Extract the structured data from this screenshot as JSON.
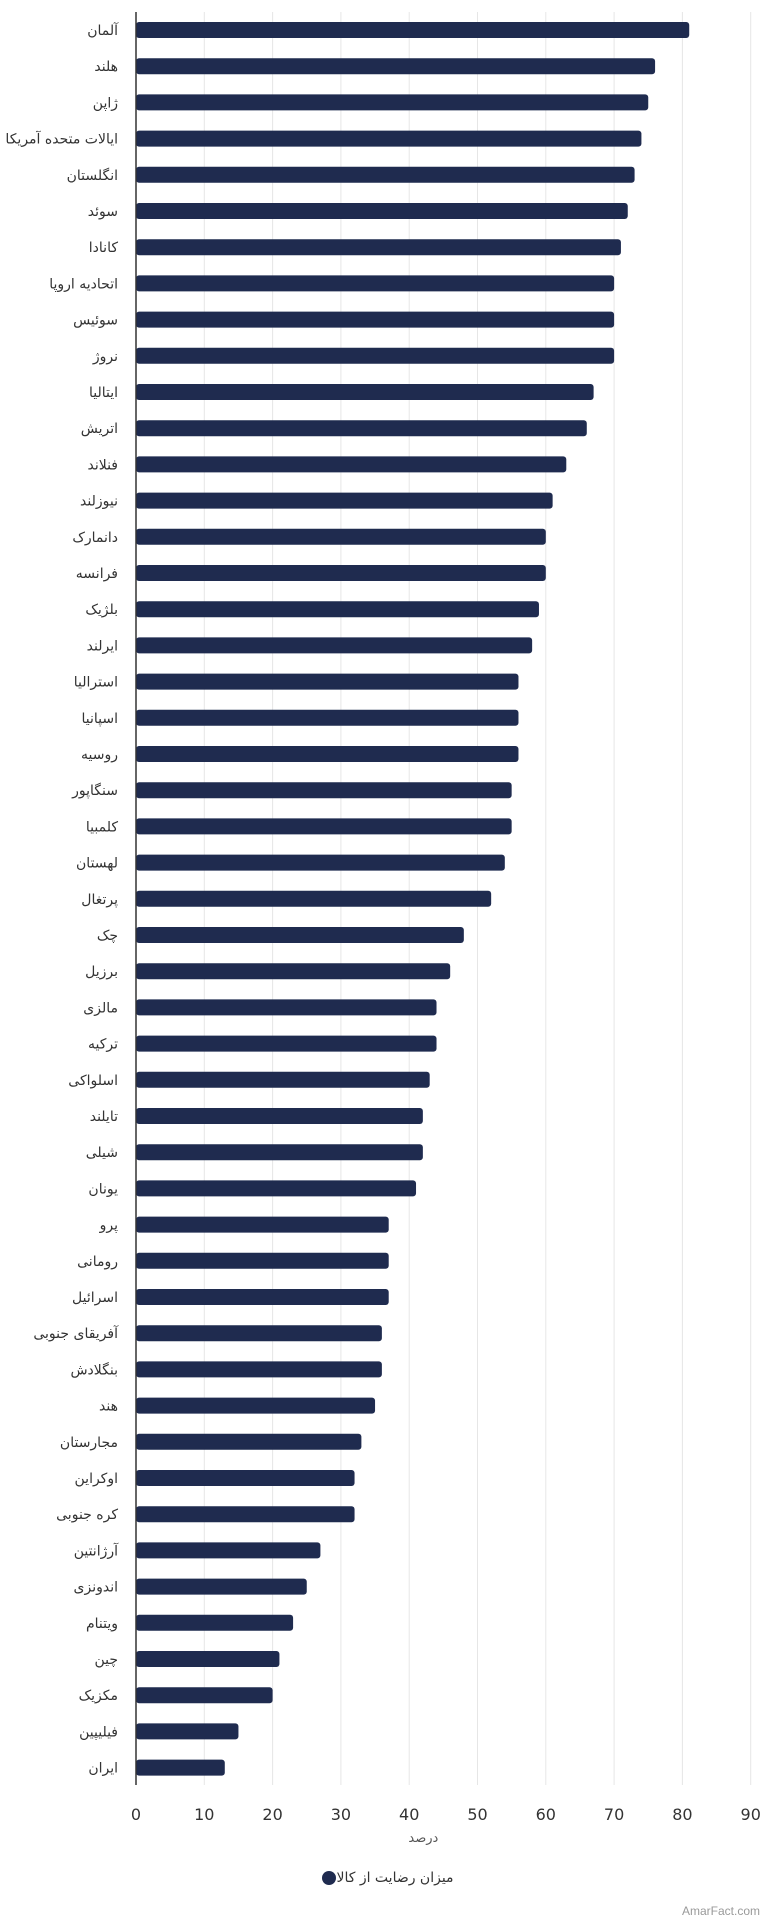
{
  "chart_data": {
    "type": "bar",
    "orientation": "horizontal",
    "categories": [
      "آلمان",
      "هلند",
      "ژاپن",
      "ایالات متحده آمریکا",
      "انگلستان",
      "سوئد",
      "کانادا",
      "اتحادیه اروپا",
      "سوئیس",
      "نروژ",
      "ایتالیا",
      "اتریش",
      "فنلاند",
      "نیوزلند",
      "دانمارک",
      "فرانسه",
      "بلژیک",
      "ایرلند",
      "استرالیا",
      "اسپانیا",
      "روسیه",
      "سنگاپور",
      "کلمبیا",
      "لهستان",
      "پرتغال",
      "چک",
      "برزیل",
      "مالزی",
      "ترکیه",
      "اسلواکی",
      "تایلند",
      "شیلی",
      "یونان",
      "پرو",
      "رومانی",
      "اسرائیل",
      "آفریقای جنوبی",
      "بنگلادش",
      "هند",
      "مجارستان",
      "اوکراین",
      "کره جنوبی",
      "آرژانتین",
      "اندونزی",
      "ویتنام",
      "چین",
      "مکزیک",
      "فیلیپین",
      "ایران"
    ],
    "series": [
      {
        "name": "میزان رضایت از کالا",
        "color": "#1f2b4f",
        "values": [
          81,
          76,
          75,
          74,
          73,
          72,
          71,
          70,
          70,
          70,
          67,
          66,
          63,
          61,
          60,
          60,
          59,
          58,
          56,
          56,
          56,
          55,
          55,
          54,
          52,
          48,
          46,
          44,
          44,
          43,
          42,
          42,
          41,
          37,
          37,
          37,
          36,
          36,
          35,
          33,
          32,
          32,
          27,
          25,
          23,
          21,
          20,
          15,
          13
        ]
      }
    ],
    "xticks": [
      "0",
      "10",
      "20",
      "30",
      "40",
      "50",
      "60",
      "70",
      "80",
      "90"
    ],
    "xlim": [
      0,
      90
    ],
    "xlabel": "درصد",
    "grid": true,
    "legend_position": "bottom-center"
  },
  "watermark": "AmarFact.com"
}
